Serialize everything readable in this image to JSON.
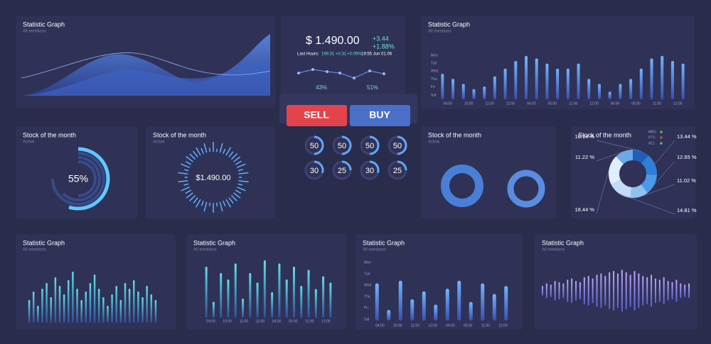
{
  "panels": [
    {
      "title": "Statistic Graph",
      "subtitle": "All mentions"
    },
    {
      "title": "Statistic Graph",
      "subtitle": "All mentions"
    },
    {
      "title": "Stock of the month",
      "subtitle": "Active"
    },
    {
      "title": "Stock of the month",
      "subtitle": "Active"
    },
    {
      "title": "Stock of the month",
      "subtitle": "Active"
    },
    {
      "title": "Stock of the month"
    },
    {
      "title": "Statistic Graph",
      "subtitle": "All mentions"
    },
    {
      "title": "Statistic Graph",
      "subtitle": "All mentions"
    },
    {
      "title": "Statistic Graph",
      "subtitle": "All mentions"
    },
    {
      "title": "Statistic Graph",
      "subtitle": "All mentions"
    }
  ],
  "price": {
    "main": "$ 1.490.00",
    "change": "+3.44",
    "change_pct": "+1.88%",
    "last_hours": "Last Hours:",
    "last_value": "199.31",
    "last_change": "+0.31",
    "last_pct": "+0.05%",
    "time": "19:55 Jun 01.06",
    "left_pct": "43%",
    "right_pct": "51%"
  },
  "buttons": {
    "sell": "SELL",
    "buy": "BUY"
  },
  "top_bars": {
    "days": [
      "Mon",
      "Tue",
      "Wed",
      "Thu",
      "Fri",
      "Sat"
    ],
    "x_labels": [
      "04:00",
      "10:00",
      "11:00",
      "12:00",
      "04:00",
      "05:00",
      "11:00",
      "12:00",
      "04:00",
      "05:00",
      "11:00",
      "12:00"
    ],
    "values": [
      50,
      40,
      30,
      20,
      25,
      45,
      60,
      75,
      85,
      80,
      70,
      60,
      60,
      70,
      40,
      30,
      15,
      30,
      40,
      60,
      80,
      85,
      75,
      70
    ]
  },
  "gauge": {
    "value": 55,
    "label": "55%"
  },
  "radial": {
    "label": "$1.490.00"
  },
  "dials": {
    "values": [
      50,
      50,
      50,
      50,
      30,
      25,
      30,
      25
    ]
  },
  "pie": {
    "legend": [
      "MBS",
      "PTC",
      "A11"
    ],
    "values": [
      10.14,
      13.44,
      12.65,
      11.02,
      14.81,
      18.44,
      11.22
    ],
    "value_labels": [
      "10.14 %",
      "13.44 %",
      "12.65 %",
      "11.02 %",
      "14.81 %",
      "18.44 %",
      "11.22 %"
    ]
  },
  "bottom1": {
    "values": [
      40,
      55,
      30,
      60,
      70,
      45,
      80,
      65,
      50,
      75,
      90,
      60,
      40,
      55,
      70,
      85,
      60,
      45,
      30,
      50,
      65,
      40,
      70,
      60,
      75,
      55,
      45,
      65,
      50,
      40
    ]
  },
  "bottom2": {
    "x_labels": [
      "04:00",
      "10:00",
      "11:00",
      "12:00",
      "04:00",
      "05:00",
      "11:00",
      "12:00"
    ],
    "values": [
      80,
      25,
      70,
      60,
      85,
      30,
      70,
      55,
      90,
      40,
      85,
      60,
      80,
      50,
      75,
      45,
      65,
      55
    ]
  },
  "bottom3": {
    "days": [
      "Mon",
      "Tue",
      "Wed",
      "Thu",
      "Fri",
      "Sat"
    ],
    "x_labels": [
      "04:00",
      "10:00",
      "11:00",
      "12:00",
      "04:00",
      "05:00",
      "11:00",
      "12:00"
    ],
    "values": [
      70,
      20,
      75,
      40,
      55,
      30,
      60,
      75,
      35,
      70,
      50,
      65
    ]
  },
  "bottom4": {
    "values": [
      20,
      30,
      25,
      40,
      35,
      30,
      45,
      50,
      40,
      35,
      55,
      60,
      50,
      65,
      70,
      60,
      75,
      80,
      70,
      85,
      75,
      65,
      80,
      70,
      60,
      55,
      65,
      50,
      45,
      55,
      40,
      35,
      45,
      30,
      25,
      30
    ]
  }
}
